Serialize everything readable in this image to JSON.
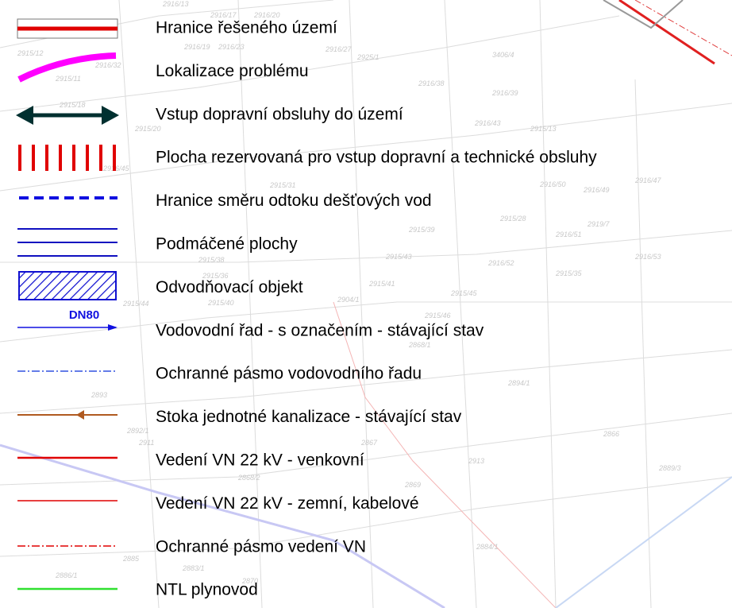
{
  "legend": {
    "items": [
      {
        "label": "Hranice řešeného území"
      },
      {
        "label": "Lokalizace problému"
      },
      {
        "label": "Vstup dopravní obsluhy do území"
      },
      {
        "label": "Plocha rezervovaná pro vstup dopravní a technické obsluhy"
      },
      {
        "label": "Hranice směru odtoku dešťových vod"
      },
      {
        "label": "Podmáčené plochy"
      },
      {
        "label": "Odvodňovací objekt"
      },
      {
        "label": "Vodovodní řad - s označením - stávající stav",
        "tag": "DN80"
      },
      {
        "label": "Ochranné pásmo vodovodního řadu"
      },
      {
        "label": "Stoka jednotné kanalizace - stávající stav"
      },
      {
        "label": "Vedení VN 22 kV - venkovní"
      },
      {
        "label": "Vedení VN 22 kV - zemní, kabelové"
      },
      {
        "label": "Ochranné pásmo vedení VN"
      },
      {
        "label": "NTL plynovod"
      }
    ]
  },
  "map": {
    "parcels": [
      "2916/13",
      "2916/17",
      "2916/20",
      "2916/19",
      "2916/23",
      "2916/27",
      "2925/1",
      "3406/4",
      "2915/12",
      "2915/11",
      "2916/32",
      "2916/38",
      "2916/39",
      "2916/43",
      "2915/13",
      "2915/18",
      "2915/20",
      "2916/45",
      "2916/50",
      "2916/49",
      "2916/47",
      "2915/28",
      "2915/31",
      "2915/38",
      "2915/39",
      "2915/43",
      "2916/52",
      "2916/51",
      "2919/7",
      "2916/53",
      "2915/35",
      "2915/36",
      "2915/40",
      "2915/41",
      "2904/1",
      "2915/44",
      "2915/45",
      "2915/46",
      "2868/1",
      "2894/1",
      "2893",
      "2892/1",
      "2911",
      "2867",
      "2866",
      "2889/3",
      "2868/2",
      "2913",
      "2869",
      "2884/1",
      "2885",
      "2883/1",
      "2886/1",
      "2870"
    ]
  }
}
